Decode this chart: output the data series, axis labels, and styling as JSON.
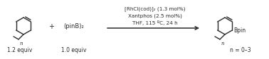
{
  "background_color": "#ffffff",
  "fig_width": 3.78,
  "fig_height": 0.84,
  "dpi": 100,
  "reactant1_label": "1.2 equiv",
  "reactant2_text": "(pinB)₂",
  "reactant2_label": "1.0 equiv",
  "conditions_line1": "[RhCl(cod)]₂ (1.3 mol%)",
  "conditions_line2": "Xantphos (2.5 mol%)",
  "conditions_line3": "THF, 115 ºC, 24 h",
  "product_label": "n = 0–3",
  "line_color": "#2a2a2a",
  "text_color": "#2a2a2a",
  "font_size_conditions": 5.2,
  "font_size_label": 5.5,
  "font_size_text": 6.0
}
